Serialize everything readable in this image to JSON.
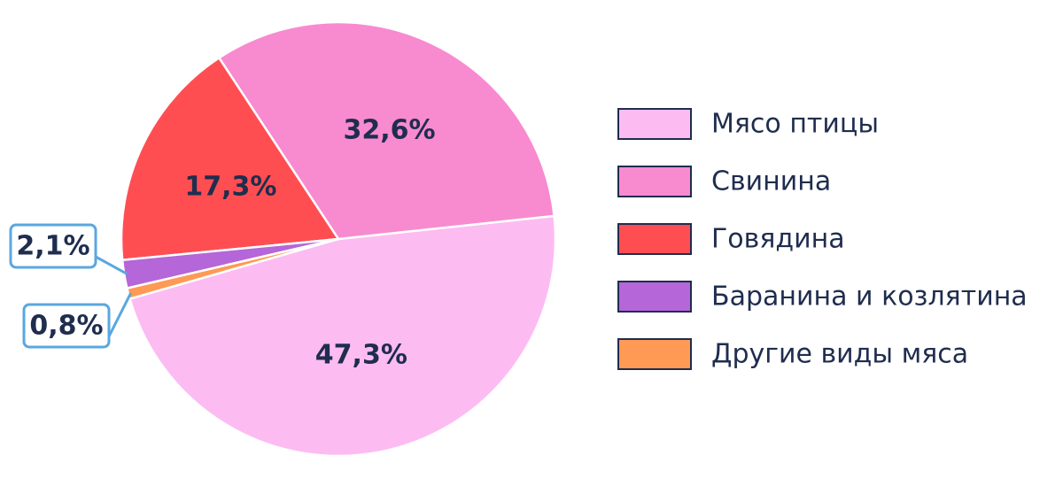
{
  "chart_data": {
    "type": "pie",
    "categories": [
      "Мясо птицы",
      "Свинина",
      "Говядина",
      "Баранина и козлятина",
      "Другие виды мяса"
    ],
    "values": [
      47.3,
      32.6,
      17.3,
      2.1,
      0.8
    ],
    "value_labels": [
      "47,3%",
      "32,6%",
      "17,3%",
      "2,1%",
      "0,8%"
    ],
    "colors": [
      "#fcbcf2",
      "#f88ad0",
      "#ff4e52",
      "#b566d8",
      "#fe9a54"
    ],
    "legend": "right"
  }
}
